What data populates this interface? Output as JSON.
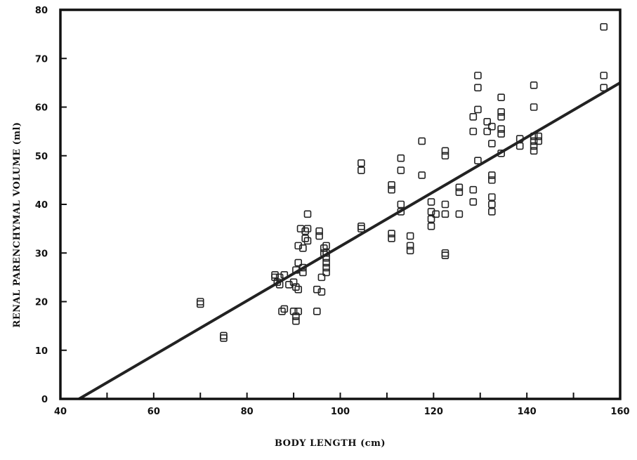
{
  "chart_data": {
    "type": "scatter",
    "title": "",
    "xlabel": "BODY LENGTH (cm)",
    "ylabel": "RENAL PARENCHYMAL VOLUME (ml)",
    "xlim": [
      40,
      160
    ],
    "ylim": [
      0,
      80
    ],
    "xticks": [
      40,
      50,
      60,
      70,
      80,
      90,
      100,
      110,
      120,
      130,
      140,
      150,
      160
    ],
    "xtick_labels": [
      "40",
      "",
      "60",
      "",
      "80",
      "",
      "100",
      "",
      "120",
      "",
      "140",
      "",
      "160"
    ],
    "yticks": [
      0,
      10,
      20,
      30,
      40,
      50,
      60,
      70,
      80
    ],
    "ytick_labels": [
      "0",
      "10",
      "20",
      "30",
      "40",
      "50",
      "60",
      "70",
      "80"
    ],
    "grid": false,
    "legend": "none",
    "regression_line": {
      "x": [
        44,
        160
      ],
      "y": [
        0,
        65
      ]
    },
    "points": [
      [
        70,
        20
      ],
      [
        70,
        19.5
      ],
      [
        75,
        13
      ],
      [
        75,
        12.5
      ],
      [
        86,
        25.5
      ],
      [
        86,
        25
      ],
      [
        86.5,
        24
      ],
      [
        87,
        25
      ],
      [
        87,
        23.5
      ],
      [
        87.5,
        18
      ],
      [
        88,
        18.5
      ],
      [
        88,
        25.5
      ],
      [
        89,
        23.5
      ],
      [
        90,
        24
      ],
      [
        90,
        18
      ],
      [
        90.5,
        26.5
      ],
      [
        90.5,
        23
      ],
      [
        90.5,
        17
      ],
      [
        90.5,
        16
      ],
      [
        91,
        22.5
      ],
      [
        91,
        18
      ],
      [
        91,
        31.5
      ],
      [
        91,
        28
      ],
      [
        91.5,
        35
      ],
      [
        92,
        27
      ],
      [
        92,
        26
      ],
      [
        92,
        31
      ],
      [
        92.5,
        34.5
      ],
      [
        92.5,
        33
      ],
      [
        93,
        38
      ],
      [
        93,
        35
      ],
      [
        93,
        32.5
      ],
      [
        95,
        22.5
      ],
      [
        95,
        18
      ],
      [
        95.5,
        34.5
      ],
      [
        95.5,
        33.5
      ],
      [
        96,
        25
      ],
      [
        96,
        22
      ],
      [
        96.5,
        31
      ],
      [
        96.5,
        30
      ],
      [
        97,
        31.5
      ],
      [
        97,
        30
      ],
      [
        97,
        28
      ],
      [
        97,
        27
      ],
      [
        97,
        26
      ],
      [
        97,
        29
      ],
      [
        104.5,
        48.5
      ],
      [
        104.5,
        47
      ],
      [
        104.5,
        35.5
      ],
      [
        104.5,
        35
      ],
      [
        111,
        44
      ],
      [
        111,
        43
      ],
      [
        111,
        34
      ],
      [
        111,
        33
      ],
      [
        113,
        49.5
      ],
      [
        113,
        47
      ],
      [
        113,
        40
      ],
      [
        113,
        38.5
      ],
      [
        115,
        33.5
      ],
      [
        115,
        31.5
      ],
      [
        115,
        30.5
      ],
      [
        117.5,
        53
      ],
      [
        117.5,
        46
      ],
      [
        119.5,
        40.5
      ],
      [
        119.5,
        38.5
      ],
      [
        119.5,
        37
      ],
      [
        119.5,
        35.5
      ],
      [
        120.5,
        38
      ],
      [
        122.5,
        51
      ],
      [
        122.5,
        50
      ],
      [
        122.5,
        40
      ],
      [
        122.5,
        38
      ],
      [
        122.5,
        30
      ],
      [
        122.5,
        29.5
      ],
      [
        125.5,
        43.5
      ],
      [
        125.5,
        42.5
      ],
      [
        125.5,
        38
      ],
      [
        128.5,
        58
      ],
      [
        128.5,
        55
      ],
      [
        128.5,
        43
      ],
      [
        128.5,
        40.5
      ],
      [
        129.5,
        66.5
      ],
      [
        129.5,
        64
      ],
      [
        129.5,
        59.5
      ],
      [
        129.5,
        49
      ],
      [
        131.5,
        57
      ],
      [
        131.5,
        55
      ],
      [
        132.5,
        56
      ],
      [
        132.5,
        52.5
      ],
      [
        132.5,
        46
      ],
      [
        132.5,
        45
      ],
      [
        132.5,
        41.5
      ],
      [
        132.5,
        40
      ],
      [
        132.5,
        38.5
      ],
      [
        134.5,
        62
      ],
      [
        134.5,
        59
      ],
      [
        134.5,
        58
      ],
      [
        134.5,
        55.5
      ],
      [
        134.5,
        54.5
      ],
      [
        134.5,
        50.5
      ],
      [
        138.5,
        53.5
      ],
      [
        138.5,
        52
      ],
      [
        141.5,
        64.5
      ],
      [
        141.5,
        60
      ],
      [
        141.5,
        54
      ],
      [
        141.5,
        53
      ],
      [
        141.5,
        52
      ],
      [
        141.5,
        51
      ],
      [
        142.5,
        54
      ],
      [
        142.5,
        53
      ],
      [
        156.5,
        76.5
      ],
      [
        156.5,
        66.5
      ],
      [
        156.5,
        64
      ]
    ]
  }
}
